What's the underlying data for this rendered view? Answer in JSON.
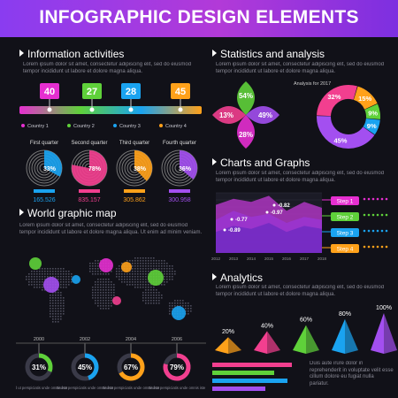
{
  "banner": {
    "title": "INFOGRAPHIC DESIGN ELEMENTS"
  },
  "sections": {
    "info": "Information activities",
    "stats": "Statistics and analysis",
    "charts": "Charts and Graphs",
    "map": "World graphic map",
    "analytics": "Analytics"
  },
  "lorem": "Lorem ipsum dolor sit amet, consectetur adipiscing elit, sed do eiusmod tempor incididunt ut labore et dolore magna aliqua.",
  "lorem_long": "Lorem ipsum dolor sit amet, consectetur adipiscing elit, sed do eiusmod tempor incididunt ut labore et dolore magna aliqua. Ut enim ad minim veniam.",
  "lorem_short": "Duis aute irure dolor in reprehenderit in voluptate velit esse cillum dolore eu fugiat nulla pariatur.",
  "foot_text": "Sed ut perspiciatis unde omnis iste",
  "stats_chart_title": "Analysis for 2017",
  "colors": {
    "magenta": "#e62fd0",
    "green": "#5fd13a",
    "blue": "#1aa3f0",
    "orange": "#ffa11a",
    "purple": "#a34ff0",
    "pink": "#f23f8f"
  },
  "chart_data": [
    {
      "type": "bar",
      "name": "country-timeline",
      "categories": [
        "Country 1",
        "Country 2",
        "Country 3",
        "Country 4"
      ],
      "values": [
        40,
        27,
        28,
        45
      ],
      "colors": [
        "#e62fd0",
        "#5fd13a",
        "#1aa3f0",
        "#ffa11a"
      ]
    },
    {
      "type": "pie",
      "name": "quarter-dials",
      "categories": [
        "First quarter",
        "Second quarter",
        "Third quarter",
        "Fourth quarter"
      ],
      "percent_labels": [
        "33%",
        "78%",
        "38%",
        "36%"
      ],
      "values": [
        33,
        78,
        38,
        36
      ],
      "totals": [
        "165.526",
        "835.157",
        "305.862",
        "300.958"
      ],
      "colors": [
        "#1aa3f0",
        "#f23f8f",
        "#ffa11a",
        "#a34ff0"
      ]
    },
    {
      "type": "pie",
      "name": "petal-chart",
      "labels": [
        "54%",
        "49%",
        "28%",
        "13%"
      ],
      "values": [
        54,
        49,
        28,
        13
      ],
      "colors": [
        "#5fd13a",
        "#a34ff0",
        "#e62fd0",
        "#f23f8f"
      ]
    },
    {
      "type": "pie",
      "name": "donut-2017",
      "title": "Analysis for 2017",
      "labels": [
        "15%",
        "9%",
        "9%",
        "45%",
        "32%"
      ],
      "values": [
        15,
        9,
        9,
        45,
        32
      ],
      "colors": [
        "#ffa11a",
        "#5fd13a",
        "#1aa3f0",
        "#a34ff0",
        "#f23f8f"
      ]
    },
    {
      "type": "area",
      "name": "charts-and-graphs",
      "x": [
        "2012",
        "2013",
        "2014",
        "2015",
        "2016",
        "2017",
        "2018"
      ],
      "annotations": [
        "-0.82",
        "-0.97",
        "-0.77",
        "-0.89"
      ],
      "steps": [
        "Step 1",
        "Step 2",
        "Step 3",
        "Step 4"
      ],
      "step_colors": [
        "#e62fd0",
        "#5fd13a",
        "#1aa3f0",
        "#ffa11a"
      ],
      "series": [
        {
          "values": [
            0.8,
            0.9,
            0.85,
            0.95,
            0.7,
            0.85,
            0.75
          ]
        },
        {
          "values": [
            0.55,
            0.7,
            0.6,
            0.65,
            0.5,
            0.6,
            0.55
          ]
        },
        {
          "values": [
            0.35,
            0.45,
            0.4,
            0.5,
            0.35,
            0.45,
            0.4
          ]
        }
      ]
    },
    {
      "type": "pie",
      "name": "year-donuts",
      "categories": [
        "2000",
        "2002",
        "2004",
        "2006"
      ],
      "values": [
        31,
        45,
        67,
        79
      ],
      "labels": [
        "31%",
        "45%",
        "67%",
        "79%"
      ],
      "colors": [
        "#5fd13a",
        "#1aa3f0",
        "#ffa11a",
        "#f23f8f"
      ]
    },
    {
      "type": "bar",
      "name": "pyramids",
      "labels": [
        "20%",
        "40%",
        "60%",
        "80%",
        "100%"
      ],
      "values": [
        20,
        40,
        60,
        80,
        100
      ],
      "colors": [
        "#ffa11a",
        "#f23f8f",
        "#5fd13a",
        "#1aa3f0",
        "#a34ff0"
      ]
    }
  ],
  "map_bubbles": [
    {
      "color": "#5fd13a"
    },
    {
      "color": "#a34ff0"
    },
    {
      "color": "#1aa3f0"
    },
    {
      "color": "#e62fd0"
    },
    {
      "color": "#ffa11a"
    },
    {
      "color": "#f23f8f"
    },
    {
      "color": "#5fd13a"
    },
    {
      "color": "#1aa3f0"
    }
  ]
}
